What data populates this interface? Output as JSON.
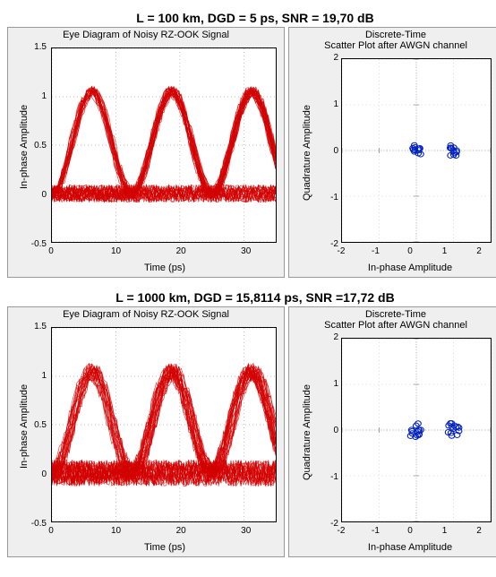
{
  "panels": [
    {
      "title": "L = 100 km, DGD = 5 ps, SNR = 19,70 dB",
      "eye": {
        "title": "Eye Diagram of Noisy RZ-OOK Signal",
        "xlabel": "Time (ps)",
        "ylabel": "In-phase Amplitude",
        "xlim": [
          0,
          35
        ],
        "ylim": [
          -0.5,
          1.5
        ],
        "xticks": [
          0,
          10,
          20,
          30
        ],
        "yticks": [
          -0.5,
          0,
          0.5,
          1,
          1.5
        ],
        "line_color": "#d30000",
        "bg": "#ffffff",
        "grid_color": "#808080",
        "num_traces": 60,
        "noise": 0.06,
        "pulse_jitter": 0.8,
        "period": 12.5
      },
      "scatter": {
        "title_line1": "Discrete-Time",
        "title_line2": "Scatter Plot after AWGN channel",
        "xlabel": "In-phase Amplitude",
        "ylabel": "Quadrature Amplitude",
        "xlim": [
          -2,
          2
        ],
        "ylim": [
          -2,
          2
        ],
        "ticks": [
          -2,
          -1,
          0,
          1,
          2
        ],
        "marker_color": "#0020c0",
        "bg": "#ffffff",
        "grid_color": "#bfbfbf",
        "centers": [
          [
            0,
            0
          ],
          [
            1,
            0
          ]
        ],
        "spread": 0.12,
        "points_per_cluster": 12
      }
    },
    {
      "title": "L = 1000 km, DGD = 15,8114 ps, SNR =17,72 dB",
      "eye": {
        "title": "Eye Diagram of Noisy RZ-OOK Signal",
        "xlabel": "Time (ps)",
        "ylabel": "In-phase Amplitude",
        "xlim": [
          0,
          35
        ],
        "ylim": [
          -0.5,
          1.5
        ],
        "xticks": [
          0,
          10,
          20,
          30
        ],
        "yticks": [
          -0.5,
          0,
          0.5,
          1,
          1.5
        ],
        "line_color": "#d30000",
        "bg": "#ffffff",
        "grid_color": "#808080",
        "num_traces": 60,
        "noise": 0.09,
        "pulse_jitter": 1.3,
        "period": 12.5
      },
      "scatter": {
        "title_line1": "Discrete-Time",
        "title_line2": "Scatter Plot after AWGN channel",
        "xlabel": "In-phase Amplitude",
        "ylabel": "Quadrature Amplitude",
        "xlim": [
          -2,
          2
        ],
        "ylim": [
          -2,
          2
        ],
        "ticks": [
          -2,
          -1,
          0,
          1,
          2
        ],
        "marker_color": "#0020c0",
        "bg": "#ffffff",
        "grid_color": "#bfbfbf",
        "centers": [
          [
            0,
            0
          ],
          [
            1,
            0
          ]
        ],
        "spread": 0.16,
        "points_per_cluster": 14
      }
    }
  ]
}
